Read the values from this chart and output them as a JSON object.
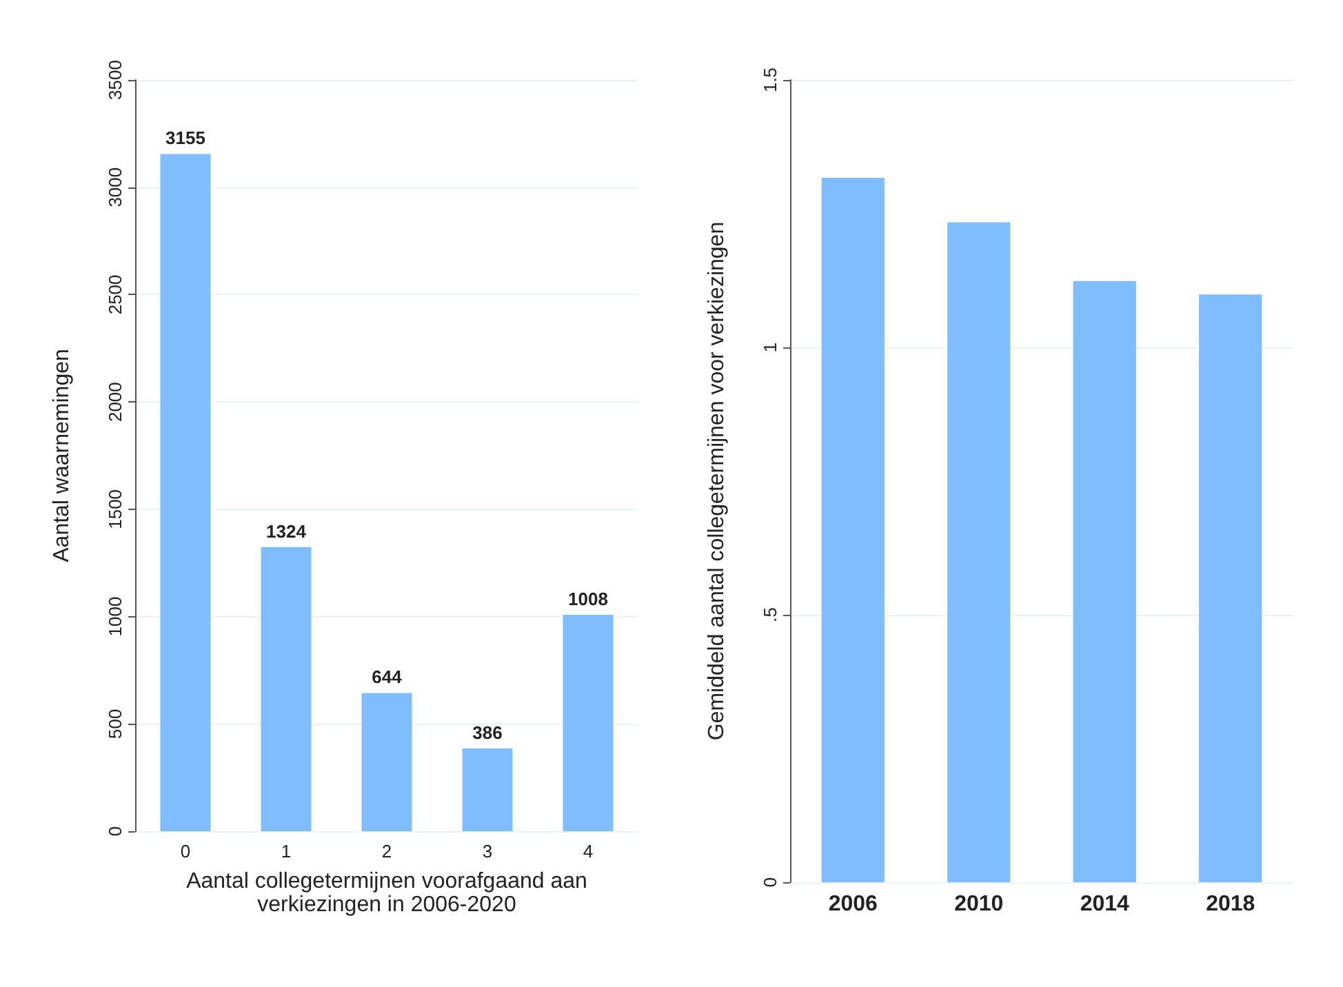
{
  "chart_data": [
    {
      "type": "bar",
      "categories": [
        "0",
        "1",
        "2",
        "3",
        "4"
      ],
      "values": [
        3155,
        1324,
        644,
        386,
        1008
      ],
      "color": "#80bdff",
      "ylabel": "Aantal waarnemingen",
      "xlabel": "Aantal collegetermijnen voorafgaand aan\nverkiezingen in 2006-2020",
      "ylim": [
        0,
        3500
      ],
      "yticks": [
        0,
        500,
        1000,
        1500,
        2000,
        2500,
        3000,
        3500
      ],
      "grid": "y",
      "data_labels": true
    },
    {
      "type": "bar",
      "categories": [
        "2006",
        "2010",
        "2014",
        "2018"
      ],
      "values": [
        1.317,
        1.234,
        1.124,
        1.099
      ],
      "color": "#80bdff",
      "ylabel": "Gemiddeld aantal collegetermijnen voor verkiezingen",
      "ylim": [
        0,
        1.5
      ],
      "yticks": [
        0,
        {
          "value": 0.5,
          "label": ".5"
        },
        1,
        1.5
      ],
      "grid": "y"
    }
  ]
}
